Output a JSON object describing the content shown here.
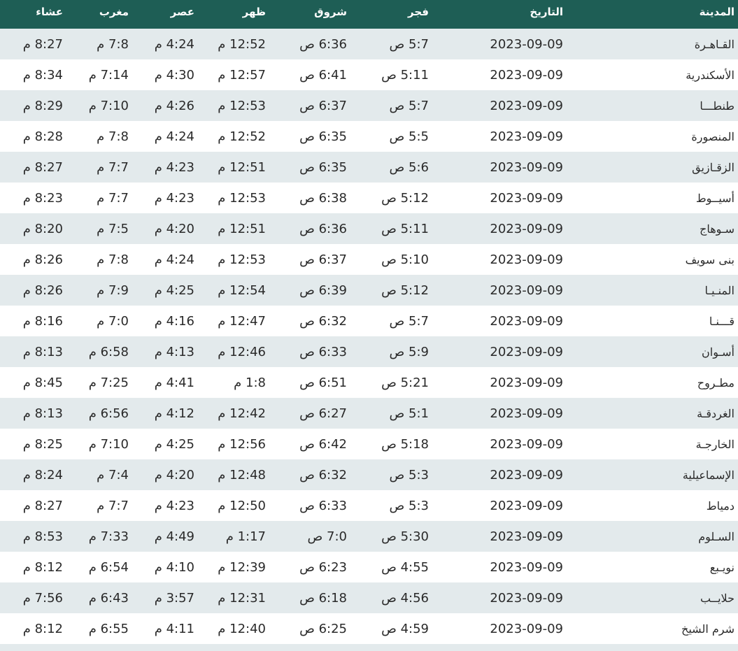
{
  "header": {
    "columns": [
      "المدينة",
      "التاريخ",
      "فجر",
      "شروق",
      "ظهر",
      "عصر",
      "مغرب",
      "عشاء"
    ]
  },
  "colors": {
    "header_bg": "#1e5e55",
    "row_alt_bg": "#e3eaec"
  },
  "rows": [
    [
      "القـاهـرة",
      "2023-09-09",
      "5:7 ص",
      "6:36 ص",
      "12:52 م",
      "4:24 م",
      "7:8 م",
      "8:27 م"
    ],
    [
      "الأسكندرية",
      "2023-09-09",
      "5:11 ص",
      "6:41 ص",
      "12:57 م",
      "4:30 م",
      "7:14 م",
      "8:34 م"
    ],
    [
      "طنطـــا",
      "2023-09-09",
      "5:7 ص",
      "6:37 ص",
      "12:53 م",
      "4:26 م",
      "7:10 م",
      "8:29 م"
    ],
    [
      "المنصورة",
      "2023-09-09",
      "5:5 ص",
      "6:35 ص",
      "12:52 م",
      "4:24 م",
      "7:8 م",
      "8:28 م"
    ],
    [
      "الزقـازيق",
      "2023-09-09",
      "5:6 ص",
      "6:35 ص",
      "12:51 م",
      "4:23 م",
      "7:7 م",
      "8:27 م"
    ],
    [
      "أسيــوط",
      "2023-09-09",
      "5:12 ص",
      "6:38 ص",
      "12:53 م",
      "4:23 م",
      "7:7 م",
      "8:23 م"
    ],
    [
      "سـوهاج",
      "2023-09-09",
      "5:11 ص",
      "6:36 ص",
      "12:51 م",
      "4:20 م",
      "7:5 م",
      "8:20 م"
    ],
    [
      "بنى سويف",
      "2023-09-09",
      "5:10 ص",
      "6:37 ص",
      "12:53 م",
      "4:24 م",
      "7:8 م",
      "8:26 م"
    ],
    [
      "المنـيـا",
      "2023-09-09",
      "5:12 ص",
      "6:39 ص",
      "12:54 م",
      "4:25 م",
      "7:9 م",
      "8:26 م"
    ],
    [
      "قـــنـا",
      "2023-09-09",
      "5:7 ص",
      "6:32 ص",
      "12:47 م",
      "4:16 م",
      "7:0 م",
      "8:16 م"
    ],
    [
      "أسـوان",
      "2023-09-09",
      "5:9 ص",
      "6:33 ص",
      "12:46 م",
      "4:13 م",
      "6:58 م",
      "8:13 م"
    ],
    [
      "مطـروح",
      "2023-09-09",
      "5:21 ص",
      "6:51 ص",
      "1:8 م",
      "4:41 م",
      "7:25 م",
      "8:45 م"
    ],
    [
      "الغردقـة",
      "2023-09-09",
      "5:1 ص",
      "6:27 ص",
      "12:42 م",
      "4:12 م",
      "6:56 م",
      "8:13 م"
    ],
    [
      "الخارجـة",
      "2023-09-09",
      "5:18 ص",
      "6:42 ص",
      "12:56 م",
      "4:25 م",
      "7:10 م",
      "8:25 م"
    ],
    [
      "الإسماعيلية",
      "2023-09-09",
      "5:3 ص",
      "6:32 ص",
      "12:48 م",
      "4:20 م",
      "7:4 م",
      "8:24 م"
    ],
    [
      "دمياط",
      "2023-09-09",
      "5:3 ص",
      "6:33 ص",
      "12:50 م",
      "4:23 م",
      "7:7 م",
      "8:27 م"
    ],
    [
      "السـلوم",
      "2023-09-09",
      "5:30 ص",
      "7:0 ص",
      "1:17 م",
      "4:49 م",
      "7:33 م",
      "8:53 م"
    ],
    [
      "نويـبع",
      "2023-09-09",
      "4:55 ص",
      "6:23 ص",
      "12:39 م",
      "4:10 م",
      "6:54 م",
      "8:12 م"
    ],
    [
      "حلايــب",
      "2023-09-09",
      "4:56 ص",
      "6:18 ص",
      "12:31 م",
      "3:57 م",
      "6:43 م",
      "7:56 م"
    ],
    [
      "شرم الشيخ",
      "2023-09-09",
      "4:59 ص",
      "6:25 ص",
      "12:40 م",
      "4:11 م",
      "6:55 م",
      "8:12 م"
    ]
  ]
}
